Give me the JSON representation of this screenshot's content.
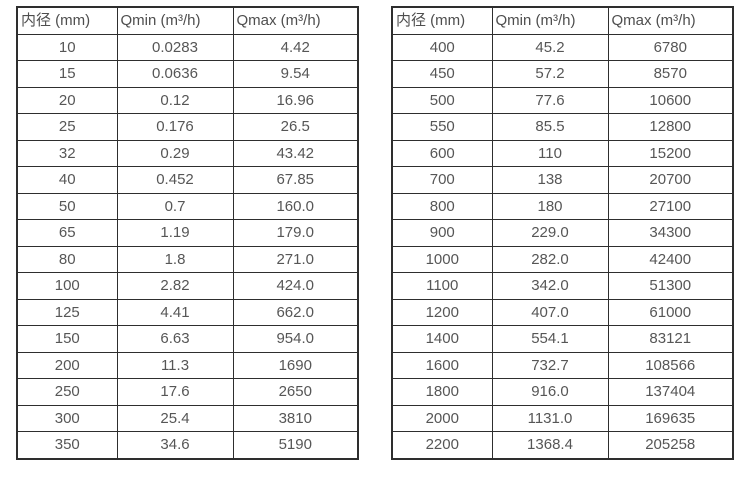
{
  "colors": {
    "background": "#ffffff",
    "border": "#2e2e2e",
    "text": "#565656"
  },
  "tables": [
    {
      "name": "small-diameters",
      "headers": [
        "内径 (mm)",
        "Qmin (m³/h)",
        "Qmax (m³/h)"
      ],
      "rows": [
        [
          "10",
          "0.0283",
          "4.42"
        ],
        [
          "15",
          "0.0636",
          "9.54"
        ],
        [
          "20",
          "0.12",
          "16.96"
        ],
        [
          "25",
          "0.176",
          "26.5"
        ],
        [
          "32",
          "0.29",
          "43.42"
        ],
        [
          "40",
          "0.452",
          "67.85"
        ],
        [
          "50",
          "0.7",
          "160.0"
        ],
        [
          "65",
          "1.19",
          "179.0"
        ],
        [
          "80",
          "1.8",
          "271.0"
        ],
        [
          "100",
          "2.82",
          "424.0"
        ],
        [
          "125",
          "4.41",
          "662.0"
        ],
        [
          "150",
          "6.63",
          "954.0"
        ],
        [
          "200",
          "11.3",
          "1690"
        ],
        [
          "250",
          "17.6",
          "2650"
        ],
        [
          "300",
          "25.4",
          "3810"
        ],
        [
          "350",
          "34.6",
          "5190"
        ]
      ]
    },
    {
      "name": "large-diameters",
      "headers": [
        "内径 (mm)",
        "Qmin (m³/h)",
        "Qmax (m³/h)"
      ],
      "rows": [
        [
          "400",
          "45.2",
          "6780"
        ],
        [
          "450",
          "57.2",
          "8570"
        ],
        [
          "500",
          "77.6",
          "10600"
        ],
        [
          "550",
          "85.5",
          "12800"
        ],
        [
          "600",
          "110",
          "15200"
        ],
        [
          "700",
          "138",
          "20700"
        ],
        [
          "800",
          "180",
          "27100"
        ],
        [
          "900",
          "229.0",
          "34300"
        ],
        [
          "1000",
          "282.0",
          "42400"
        ],
        [
          "1100",
          "342.0",
          "51300"
        ],
        [
          "1200",
          "407.0",
          "61000"
        ],
        [
          "1400",
          "554.1",
          "83121"
        ],
        [
          "1600",
          "732.7",
          "108566"
        ],
        [
          "1800",
          "916.0",
          "137404"
        ],
        [
          "2000",
          "1131.0",
          "169635"
        ],
        [
          "2200",
          "1368.4",
          "205258"
        ]
      ]
    }
  ]
}
